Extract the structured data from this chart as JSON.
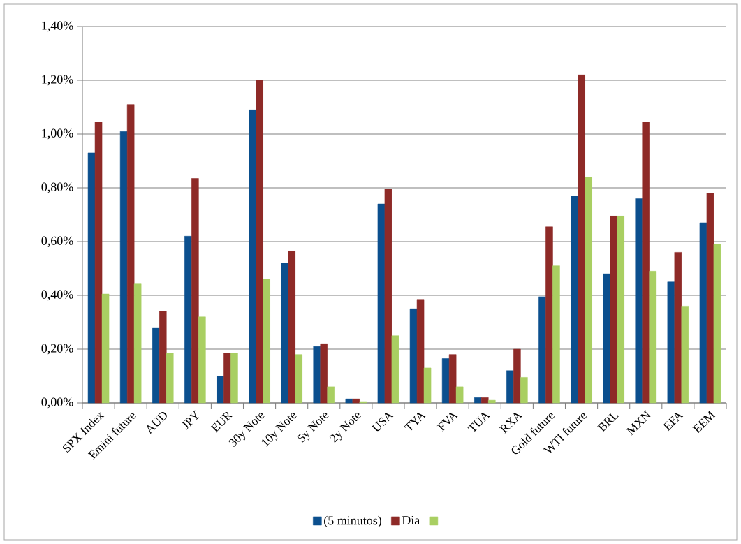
{
  "chart_data": {
    "type": "bar",
    "categories": [
      "SPX Index",
      "Emini future",
      "AUD",
      "JPY",
      "EUR",
      "30y Note",
      "10y Note",
      "5y Note",
      "2y Note",
      "USA",
      "TYA",
      "FVA",
      "TUA",
      "RXA",
      "Gold future",
      "WTI future",
      "BRL",
      "MXN",
      "EFA",
      "EEM"
    ],
    "series": [
      {
        "name": "(5 minutos)",
        "color": "#0b4f8e",
        "values": [
          0.93,
          1.01,
          0.28,
          0.62,
          0.1,
          1.09,
          0.52,
          0.21,
          0.015,
          0.74,
          0.35,
          0.165,
          0.02,
          0.12,
          0.395,
          0.77,
          0.48,
          0.76,
          0.45,
          0.67
        ]
      },
      {
        "name": "Dia",
        "color": "#8e2a27",
        "values": [
          1.045,
          1.11,
          0.34,
          0.835,
          0.185,
          1.2,
          0.565,
          0.22,
          0.015,
          0.795,
          0.385,
          0.18,
          0.02,
          0.2,
          0.655,
          1.22,
          0.695,
          1.045,
          0.56,
          0.78
        ]
      },
      {
        "color": "#a9cf62",
        "values": [
          0.405,
          0.445,
          0.185,
          0.32,
          0.185,
          0.46,
          0.18,
          0.06,
          0.005,
          0.25,
          0.13,
          0.06,
          0.01,
          0.095,
          0.51,
          0.84,
          0.695,
          0.49,
          0.36,
          0.59
        ]
      }
    ],
    "ylim": [
      0,
      1.4
    ],
    "yticks": [
      {
        "value": 0,
        "label": "0,00%"
      },
      {
        "value": 0.2,
        "label": "0,20%"
      },
      {
        "value": 0.4,
        "label": "0,40%"
      },
      {
        "value": 0.6,
        "label": "0,60%"
      },
      {
        "value": 0.8,
        "label": "0,80%"
      },
      {
        "value": 1.0,
        "label": "1,00%"
      },
      {
        "value": 1.2,
        "label": "1,20%"
      },
      {
        "value": 1.4,
        "label": "1,40%"
      }
    ],
    "grid": "y",
    "legend": "bottom"
  }
}
